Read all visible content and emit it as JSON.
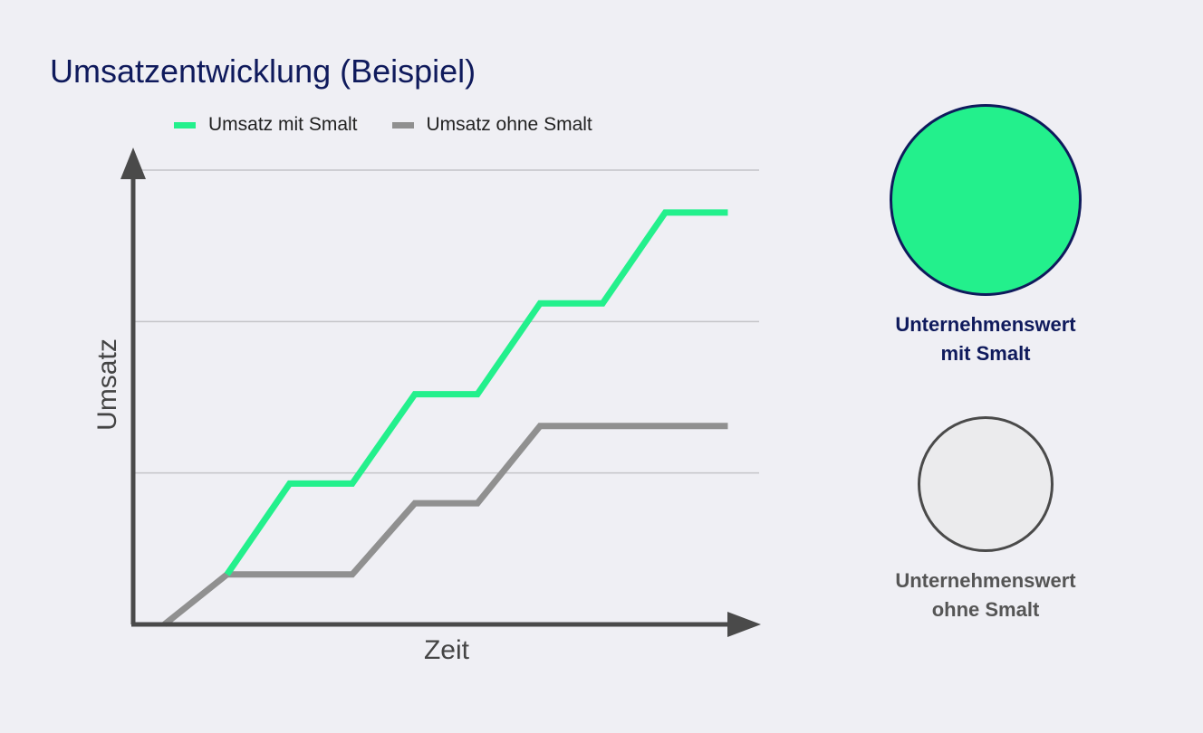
{
  "title": "Umsatzentwicklung (Beispiel)",
  "colors": {
    "with": "#23f08c",
    "without": "#909090",
    "axis": "#4a4a4a",
    "grid": "#c4c4c8",
    "title": "#0f1a5c"
  },
  "chart_data": {
    "type": "line",
    "title": "Umsatzentwicklung (Beispiel)",
    "xlabel": "Zeit",
    "ylabel": "Umsatz",
    "xlim": [
      0,
      10
    ],
    "ylim": [
      0,
      3
    ],
    "grid": true,
    "legend_position": "top-left",
    "series": [
      {
        "name": "Umsatz mit Smalt",
        "color": "#23f08c",
        "x": [
          1.5,
          2.5,
          3.5,
          4.5,
          5.5,
          6.5,
          7.5,
          8.5,
          9.5
        ],
        "y": [
          0.33,
          0.93,
          0.93,
          1.52,
          1.52,
          2.12,
          2.12,
          2.72,
          2.72
        ]
      },
      {
        "name": "Umsatz ohne Smalt",
        "color": "#909090",
        "x": [
          0.5,
          1.5,
          3.5,
          4.5,
          5.5,
          6.5,
          7.5,
          9.5
        ],
        "y": [
          0,
          0.33,
          0.33,
          0.8,
          0.8,
          1.31,
          1.31,
          1.31
        ]
      }
    ]
  },
  "valuation": {
    "with_label_line1": "Unternehmenswert",
    "with_label_line2": "mit Smalt",
    "without_label_line1": "Unternehmenswert",
    "without_label_line2": "ohne Smalt",
    "with_color": "#23f08c",
    "without_color": "#ebebed"
  }
}
